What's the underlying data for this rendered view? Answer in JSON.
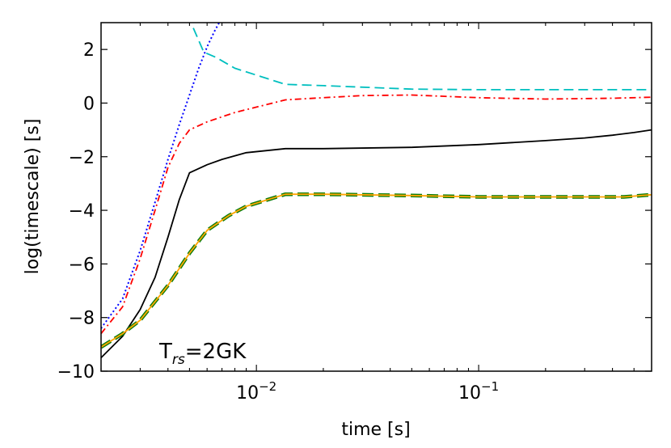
{
  "chart_data": {
    "type": "line",
    "xlabel": "time  [s]",
    "ylabel": "log(timescale)  [s]",
    "xscale": "log",
    "xlim": [
      0.002,
      0.6
    ],
    "ylim": [
      -10,
      3
    ],
    "grid": false,
    "x_tick_labels": [
      {
        "value": 0.01,
        "base": "10",
        "exp": "-2"
      },
      {
        "value": 0.1,
        "base": "10",
        "exp": "-1"
      }
    ],
    "y_ticks": [
      -10,
      -8,
      -6,
      -4,
      -2,
      0,
      2
    ],
    "y_tick_labels": [
      "−10",
      "−8",
      "−6",
      "−4",
      "−2",
      "0",
      "2"
    ],
    "annotation": {
      "main": "T",
      "sub": "rs",
      "rest": "=2GK",
      "position": "bottom-left"
    },
    "series": [
      {
        "name": "cyan-dashed",
        "color": "#00bfbf",
        "style": "dashed",
        "x": [
          0.0052,
          0.0058,
          0.0066,
          0.008,
          0.0135,
          0.02,
          0.05,
          0.1,
          0.2,
          0.4,
          0.6
        ],
        "y": [
          2.8,
          1.9,
          1.7,
          1.3,
          0.7,
          0.65,
          0.52,
          0.5,
          0.5,
          0.5,
          0.5
        ]
      },
      {
        "name": "blue-dotted",
        "color": "#0000ff",
        "style": "dotted",
        "x": [
          0.002,
          0.0025,
          0.003,
          0.0035,
          0.004,
          0.0045,
          0.005,
          0.0055,
          0.006,
          0.0065,
          0.0068
        ],
        "y": [
          -8.4,
          -7.3,
          -5.5,
          -3.7,
          -2.1,
          -0.8,
          0.3,
          1.3,
          2.1,
          2.7,
          3.0
        ]
      },
      {
        "name": "red-dashdot",
        "color": "#ff0000",
        "style": "dashdot",
        "x": [
          0.002,
          0.0025,
          0.003,
          0.0035,
          0.004,
          0.0045,
          0.005,
          0.006,
          0.008,
          0.0135,
          0.02,
          0.03,
          0.05,
          0.1,
          0.2,
          0.4,
          0.6
        ],
        "y": [
          -8.6,
          -7.6,
          -5.8,
          -4.0,
          -2.4,
          -1.5,
          -1.0,
          -0.7,
          -0.35,
          0.12,
          0.2,
          0.28,
          0.3,
          0.2,
          0.15,
          0.18,
          0.22
        ]
      },
      {
        "name": "black-solid",
        "color": "#000000",
        "style": "solid",
        "x": [
          0.002,
          0.0025,
          0.003,
          0.0035,
          0.004,
          0.0045,
          0.005,
          0.006,
          0.007,
          0.009,
          0.0135,
          0.02,
          0.05,
          0.1,
          0.2,
          0.3,
          0.4,
          0.5,
          0.6
        ],
        "y": [
          -9.5,
          -8.7,
          -7.7,
          -6.5,
          -5.0,
          -3.6,
          -2.6,
          -2.3,
          -2.1,
          -1.85,
          -1.7,
          -1.7,
          -1.65,
          -1.55,
          -1.4,
          -1.3,
          -1.2,
          -1.1,
          -1.0
        ]
      },
      {
        "name": "green-thick-dashed",
        "color": "#0a7d0a",
        "style": "thickdashed",
        "x": [
          0.002,
          0.0025,
          0.003,
          0.004,
          0.005,
          0.006,
          0.0075,
          0.009,
          0.0135,
          0.02,
          0.05,
          0.1,
          0.2,
          0.3,
          0.45,
          0.6
        ],
        "y": [
          -9.1,
          -8.6,
          -8.1,
          -6.8,
          -5.6,
          -4.75,
          -4.2,
          -3.85,
          -3.4,
          -3.4,
          -3.45,
          -3.5,
          -3.5,
          -3.5,
          -3.5,
          -3.42
        ]
      },
      {
        "name": "orange-solid",
        "color": "#ffa500",
        "style": "solid",
        "x": [
          0.002,
          0.0025,
          0.003,
          0.004,
          0.005,
          0.006,
          0.0075,
          0.009,
          0.0135,
          0.02,
          0.05,
          0.1,
          0.2,
          0.3,
          0.45,
          0.6
        ],
        "y": [
          -9.1,
          -8.6,
          -8.1,
          -6.8,
          -5.6,
          -4.75,
          -4.2,
          -3.85,
          -3.4,
          -3.4,
          -3.45,
          -3.5,
          -3.5,
          -3.5,
          -3.5,
          -3.42
        ]
      }
    ]
  }
}
